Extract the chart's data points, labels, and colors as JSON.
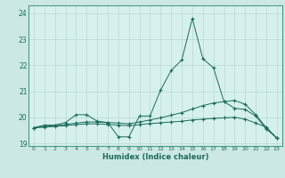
{
  "xlabel": "Humidex (Indice chaleur)",
  "bg_color": "#cce8e4",
  "plot_bg_color": "#d6f0ed",
  "grid_color": "#b8d8d4",
  "line_color": "#1a6b5a",
  "border_color": "#4a9a8a",
  "x_values": [
    0,
    1,
    2,
    3,
    4,
    5,
    6,
    7,
    8,
    9,
    10,
    11,
    12,
    13,
    14,
    15,
    16,
    17,
    18,
    19,
    20,
    21,
    22,
    23
  ],
  "series1": [
    19.6,
    19.7,
    19.7,
    19.8,
    20.1,
    20.1,
    19.85,
    19.8,
    19.25,
    19.25,
    20.05,
    20.05,
    21.05,
    21.8,
    22.2,
    23.8,
    22.25,
    21.9,
    20.6,
    20.35,
    20.3,
    20.05,
    19.55,
    19.2
  ],
  "series2": [
    19.6,
    19.65,
    19.68,
    19.72,
    19.78,
    19.82,
    19.82,
    19.8,
    19.78,
    19.75,
    19.82,
    19.9,
    19.98,
    20.08,
    20.18,
    20.32,
    20.45,
    20.55,
    20.6,
    20.65,
    20.5,
    20.1,
    19.6,
    19.2
  ],
  "series3": [
    19.6,
    19.62,
    19.65,
    19.68,
    19.72,
    19.75,
    19.75,
    19.73,
    19.7,
    19.68,
    19.72,
    19.76,
    19.79,
    19.82,
    19.85,
    19.9,
    19.93,
    19.96,
    19.98,
    20.0,
    19.93,
    19.78,
    19.62,
    19.2
  ],
  "ylim": [
    18.9,
    24.3
  ],
  "yticks": [
    19,
    20,
    21,
    22,
    23,
    24
  ],
  "xticks": [
    0,
    1,
    2,
    3,
    4,
    5,
    6,
    7,
    8,
    9,
    10,
    11,
    12,
    13,
    14,
    15,
    16,
    17,
    18,
    19,
    20,
    21,
    22,
    23
  ]
}
